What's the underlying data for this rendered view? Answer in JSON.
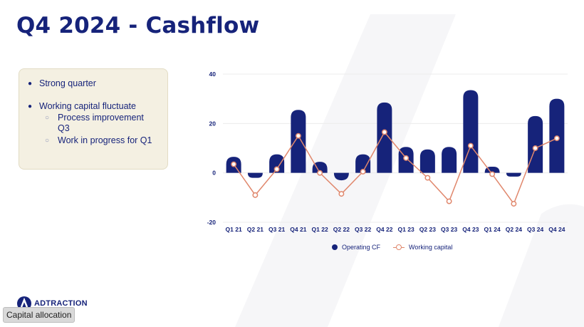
{
  "title": "Q4 2024 - Cashflow",
  "bullets": {
    "b1": "Strong quarter",
    "b2": "Working capital fluctuate",
    "s1": "Process improvement",
    "s1b": "Q3",
    "s2": "Work in progress for Q1"
  },
  "logo_text": "ADTRACTION",
  "footer_tag": "Capital allocation",
  "colors": {
    "navy": "#16237a",
    "orange": "#e0876c",
    "box_bg": "#f4f0e2"
  },
  "chart_data": {
    "type": "bar",
    "categories": [
      "Q1 21",
      "Q2 21",
      "Q3 21",
      "Q4 21",
      "Q1 22",
      "Q2 22",
      "Q3 22",
      "Q4 22",
      "Q1 23",
      "Q2 23",
      "Q3 23",
      "Q4 23",
      "Q1 24",
      "Q2 24",
      "Q3 24",
      "Q4 24"
    ],
    "series": [
      {
        "name": "Operating CF",
        "type": "bar",
        "values": [
          6.5,
          -2,
          7.5,
          25.5,
          4.5,
          -3,
          7.5,
          28.5,
          10.5,
          9.5,
          10.5,
          33.5,
          2.5,
          -1.5,
          23,
          30
        ]
      },
      {
        "name": "Working capital",
        "type": "line",
        "values": [
          3.5,
          -9,
          1.5,
          15,
          0,
          -8.5,
          0.5,
          16.5,
          6,
          -2,
          -11.5,
          11,
          -0.5,
          -12.5,
          10,
          14
        ]
      }
    ],
    "ylim": [
      -20,
      40
    ],
    "yticks": [
      "40",
      "20",
      "0",
      "-20"
    ],
    "grid": true,
    "legend": "bottom"
  }
}
